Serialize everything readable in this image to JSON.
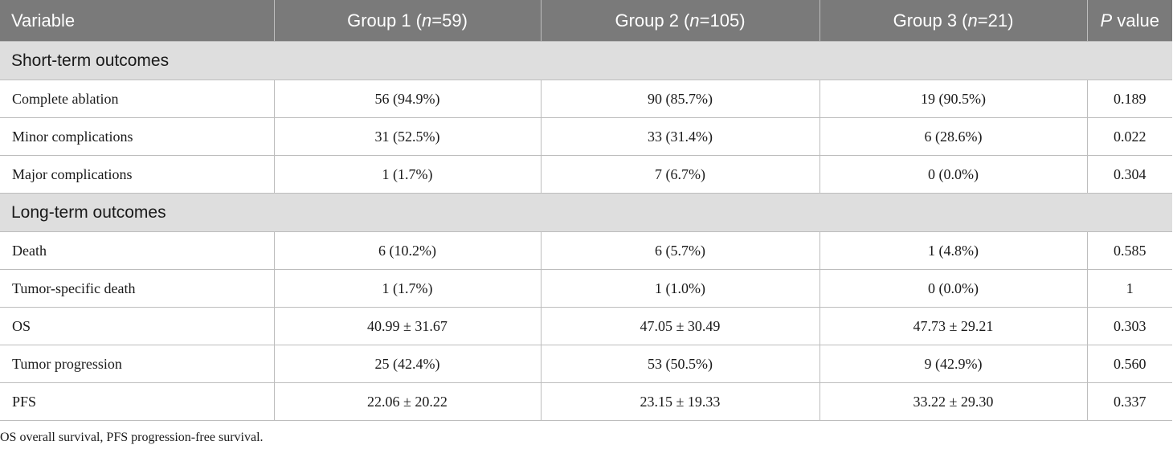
{
  "table": {
    "header": {
      "variable": "Variable",
      "group1_prefix": "Group 1 (",
      "group1_n_symbol": "n",
      "group1_suffix": "=59)",
      "group2_prefix": "Group 2 (",
      "group2_n_symbol": "n",
      "group2_suffix": "=105)",
      "group3_prefix": "Group 3 (",
      "group3_n_symbol": "n",
      "group3_suffix": "=21)",
      "pvalue_symbol": "P",
      "pvalue_suffix": " value"
    },
    "sections": [
      {
        "title": "Short-term outcomes",
        "rows": [
          {
            "variable": "Complete ablation",
            "group1": "56 (94.9%)",
            "group2": "90 (85.7%)",
            "group3": "19 (90.5%)",
            "p": "0.189"
          },
          {
            "variable": "Minor complications",
            "group1": "31 (52.5%)",
            "group2": "33 (31.4%)",
            "group3": "6 (28.6%)",
            "p": "0.022"
          },
          {
            "variable": "Major complications",
            "group1": "1 (1.7%)",
            "group2": "7 (6.7%)",
            "group3": "0 (0.0%)",
            "p": "0.304"
          }
        ]
      },
      {
        "title": "Long-term outcomes",
        "rows": [
          {
            "variable": "Death",
            "group1": "6 (10.2%)",
            "group2": "6 (5.7%)",
            "group3": "1 (4.8%)",
            "p": "0.585"
          },
          {
            "variable": "Tumor-specific death",
            "group1": "1 (1.7%)",
            "group2": "1 (1.0%)",
            "group3": "0 (0.0%)",
            "p": "1"
          },
          {
            "variable": "OS",
            "group1": "40.99 ± 31.67",
            "group2": "47.05 ± 30.49",
            "group3": "47.73 ± 29.21",
            "p": "0.303"
          },
          {
            "variable": "Tumor progression",
            "group1": "25 (42.4%)",
            "group2": "53 (50.5%)",
            "group3": "9 (42.9%)",
            "p": "0.560"
          },
          {
            "variable": "PFS",
            "group1": "22.06 ± 20.22",
            "group2": "23.15 ± 19.33",
            "group3": "33.22 ± 29.30",
            "p": "0.337"
          }
        ]
      }
    ]
  },
  "footnote": "OS overall survival, PFS progression-free survival.",
  "colors": {
    "header_bg": "#7a7a7a",
    "header_text": "#ffffff",
    "section_bg": "#dedede",
    "border": "#bdbdbd"
  }
}
